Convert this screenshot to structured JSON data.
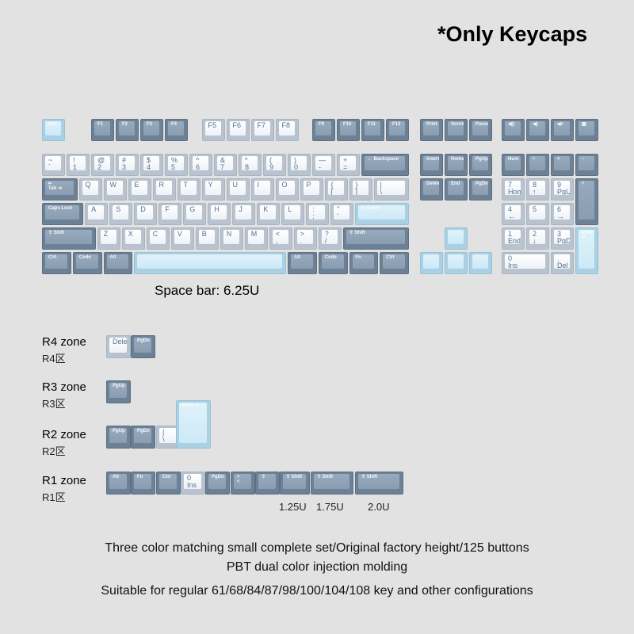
{
  "title": "*Only Keycaps",
  "space_note": "Space bar: 6.25U",
  "colors": {
    "background": "#e2e2e2",
    "dark": "#8fa2b6",
    "light": "#f1f4f8",
    "accent": "#cde9f6"
  },
  "keyboard": {
    "rows": [
      [
        {
          "t": "Esc",
          "c": "accent"
        },
        {
          "t": "F1",
          "c": "dark"
        },
        {
          "t": "F2",
          "c": "dark"
        },
        {
          "t": "F3",
          "c": "dark"
        },
        {
          "t": "F4",
          "c": "dark"
        },
        {
          "t": "F5",
          "c": "light"
        },
        {
          "t": "F6",
          "c": "light"
        },
        {
          "t": "F7",
          "c": "light"
        },
        {
          "t": "F8",
          "c": "light"
        },
        {
          "t": "F9",
          "c": "dark"
        },
        {
          "t": "F10",
          "c": "dark"
        },
        {
          "t": "F11",
          "c": "dark"
        },
        {
          "t": "F12",
          "c": "dark"
        },
        {
          "t": "Print",
          "c": "dark"
        },
        {
          "t": "Scroll",
          "c": "dark"
        },
        {
          "t": "Pause",
          "c": "dark"
        },
        {
          "t": "◀))",
          "c": "dark",
          "icon": "volume-down-icon"
        },
        {
          "t": "◀)",
          "c": "dark",
          "icon": "volume-up-icon"
        },
        {
          "t": "◀×",
          "c": "dark",
          "icon": "mute-icon"
        },
        {
          "t": "▦",
          "c": "dark",
          "icon": "calculator-icon"
        }
      ],
      [
        {
          "t": "~",
          "b": "`",
          "c": "light"
        },
        {
          "t": "!",
          "b": "1",
          "c": "light"
        },
        {
          "t": "@",
          "b": "2",
          "c": "light"
        },
        {
          "t": "#",
          "b": "3",
          "c": "light"
        },
        {
          "t": "$",
          "b": "4",
          "c": "light"
        },
        {
          "t": "%",
          "b": "5",
          "c": "light"
        },
        {
          "t": "^",
          "b": "6",
          "c": "light"
        },
        {
          "t": "&",
          "b": "7",
          "c": "light"
        },
        {
          "t": "*",
          "b": "8",
          "c": "light"
        },
        {
          "t": "(",
          "b": "9",
          "c": "light"
        },
        {
          "t": ")",
          "b": "0",
          "c": "light"
        },
        {
          "t": "—",
          "b": "-",
          "c": "light"
        },
        {
          "t": "+",
          "b": "=",
          "c": "light"
        },
        {
          "t": "← Backspace",
          "c": "dark"
        },
        {
          "t": "Insert",
          "c": "dark"
        },
        {
          "t": "Home",
          "c": "dark"
        },
        {
          "t": "PgUp",
          "c": "dark"
        },
        {
          "t": "Num",
          "c": "dark"
        },
        {
          "t": "÷",
          "c": "dark"
        },
        {
          "t": "×",
          "c": "dark"
        },
        {
          "t": "−",
          "c": "dark"
        }
      ],
      [
        {
          "t": "⇤",
          "b": "Tab ⇥",
          "c": "dark"
        },
        {
          "t": "Q",
          "c": "light"
        },
        {
          "t": "W",
          "c": "light"
        },
        {
          "t": "E",
          "c": "light"
        },
        {
          "t": "R",
          "c": "light"
        },
        {
          "t": "T",
          "c": "light"
        },
        {
          "t": "Y",
          "c": "light"
        },
        {
          "t": "U",
          "c": "light"
        },
        {
          "t": "I",
          "c": "light"
        },
        {
          "t": "O",
          "c": "light"
        },
        {
          "t": "P",
          "c": "light"
        },
        {
          "t": "{",
          "b": "[",
          "c": "light"
        },
        {
          "t": "}",
          "b": "]",
          "c": "light"
        },
        {
          "t": "|",
          "b": "\\",
          "c": "light"
        },
        {
          "t": "Delete",
          "c": "dark"
        },
        {
          "t": "End",
          "c": "dark"
        },
        {
          "t": "PgDn",
          "c": "dark"
        },
        {
          "t": "7",
          "b": "Home",
          "c": "light"
        },
        {
          "t": "8",
          "b": "↑",
          "c": "light"
        },
        {
          "t": "9",
          "b": "PgUp",
          "c": "light"
        },
        {
          "t": "+",
          "c": "dark"
        }
      ],
      [
        {
          "t": "Caps Lock",
          "c": "dark"
        },
        {
          "t": "A",
          "c": "light"
        },
        {
          "t": "S",
          "c": "light"
        },
        {
          "t": "D",
          "c": "light"
        },
        {
          "t": "F",
          "b": "_",
          "c": "light"
        },
        {
          "t": "G",
          "c": "light"
        },
        {
          "t": "H",
          "c": "light"
        },
        {
          "t": "J",
          "b": "_",
          "c": "light"
        },
        {
          "t": "K",
          "c": "light"
        },
        {
          "t": "L",
          "c": "light"
        },
        {
          "t": ":",
          "b": ";",
          "c": "light"
        },
        {
          "t": "\"",
          "b": "'",
          "c": "light"
        },
        {
          "t": "↵ Enter",
          "c": "accent"
        },
        {
          "t": "4",
          "b": "←",
          "c": "light"
        },
        {
          "t": "5",
          "c": "light"
        },
        {
          "t": "6",
          "b": "→",
          "c": "light"
        }
      ],
      [
        {
          "t": "⇧ Shift",
          "c": "dark"
        },
        {
          "t": "Z",
          "c": "light"
        },
        {
          "t": "X",
          "c": "light"
        },
        {
          "t": "C",
          "c": "light"
        },
        {
          "t": "V",
          "c": "light"
        },
        {
          "t": "B",
          "c": "light"
        },
        {
          "t": "N",
          "c": "light"
        },
        {
          "t": "M",
          "c": "light"
        },
        {
          "t": "<",
          "b": ",",
          "c": "light"
        },
        {
          "t": ">",
          "b": ".",
          "c": "light"
        },
        {
          "t": "?",
          "b": "/",
          "c": "light"
        },
        {
          "t": "⇧ Shift",
          "c": "dark"
        },
        {
          "t": "↑",
          "c": "accent"
        },
        {
          "t": "1",
          "b": "End",
          "c": "light"
        },
        {
          "t": "2",
          "b": "↓",
          "c": "light"
        },
        {
          "t": "3",
          "b": "PgDn",
          "c": "light"
        },
        {
          "t": "Enter ↵",
          "c": "accent"
        }
      ],
      [
        {
          "t": "Ctrl",
          "c": "dark"
        },
        {
          "t": "Code",
          "c": "dark"
        },
        {
          "t": "Alt",
          "c": "dark"
        },
        {
          "t": "",
          "c": "accent"
        },
        {
          "t": "Alt",
          "c": "dark"
        },
        {
          "t": "Code",
          "c": "dark"
        },
        {
          "t": "Fn",
          "c": "dark"
        },
        {
          "t": "Ctrl",
          "c": "dark"
        },
        {
          "t": "←",
          "c": "accent"
        },
        {
          "t": "↓",
          "c": "accent"
        },
        {
          "t": "→",
          "c": "accent"
        },
        {
          "t": "0",
          "b": "Ins",
          "c": "light"
        },
        {
          "t": ".",
          "b": "Del",
          "c": "light"
        }
      ]
    ]
  },
  "zones": [
    {
      "label": "R4 zone",
      "ghost": "R4区",
      "keys": [
        {
          "t": "Delete",
          "c": "light"
        },
        {
          "t": "PgDn",
          "c": "dark"
        }
      ]
    },
    {
      "label": "R3 zone",
      "ghost": "R3区",
      "keys": [
        {
          "t": "PgUp",
          "c": "dark"
        }
      ]
    },
    {
      "label": "R2 zone",
      "ghost": "R2区",
      "keys": [
        {
          "t": "PgUp",
          "c": "dark"
        },
        {
          "t": "PgDn",
          "c": "dark"
        },
        {
          "t": "|",
          "b": "\\",
          "c": "light"
        },
        {
          "t": "Enter ↵",
          "c": "accent"
        }
      ]
    },
    {
      "label": "R1 zone",
      "ghost": "R1区",
      "keys": [
        {
          "t": "Alt",
          "c": "dark"
        },
        {
          "t": "Fn",
          "c": "dark"
        },
        {
          "t": "Ctrl",
          "c": "dark"
        },
        {
          "t": "0",
          "b": "Ins",
          "c": "light"
        },
        {
          "t": "PgDn",
          "c": "dark"
        },
        {
          "t": ">",
          "b": "<",
          "c": "dark"
        },
        {
          "t": "⇧",
          "c": "dark"
        },
        {
          "t": "⇧ Shift",
          "c": "dark"
        },
        {
          "t": "⇧ Shift",
          "c": "dark"
        },
        {
          "t": "⇧ Shift",
          "c": "dark"
        }
      ]
    }
  ],
  "sizes": [
    "1.25U",
    "1.75U",
    "2.0U"
  ],
  "description": [
    "Three color matching small complete set/Original factory height/125 buttons",
    "PBT dual color injection molding",
    "Suitable for regular 61/68/84/87/98/100/104/108 key and other configurations"
  ]
}
